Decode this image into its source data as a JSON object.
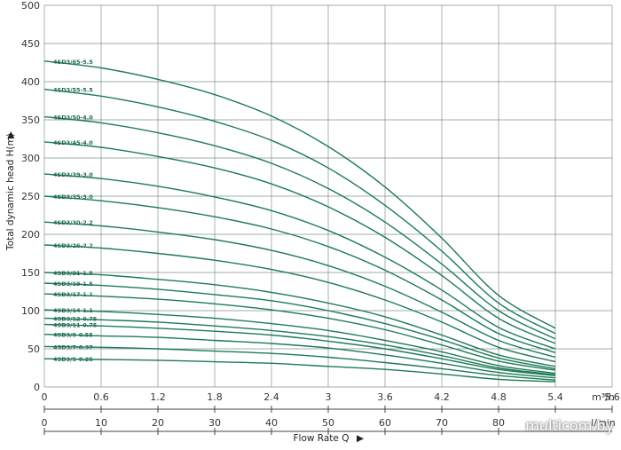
{
  "chart_data": {
    "type": "line",
    "title": "",
    "ylabel": "Total dynamic head H(m)",
    "xlabel": "Flow Rate Q",
    "ylim": [
      0,
      500
    ],
    "xlim_m3h": [
      0,
      6.0
    ],
    "y_ticks": [
      "0",
      "50",
      "100",
      "150",
      "200",
      "250",
      "300",
      "350",
      "400",
      "450",
      "500"
    ],
    "x_ticks_m3h": [
      "0",
      "0.6",
      "1.2",
      "1.8",
      "2.4",
      "3",
      "3.6",
      "4.2",
      "4.8",
      "5.4",
      "5.6"
    ],
    "x_unit_m3h": "m³/h",
    "x_ticks_lmin": [
      "0",
      "10",
      "20",
      "30",
      "40",
      "50",
      "60",
      "70",
      "80"
    ],
    "x_unit_lmin": "l/min",
    "grid": true,
    "series_color": "#1d7a56",
    "x": [
      0,
      0.6,
      1.2,
      1.8,
      2.4,
      3.0,
      3.6,
      4.2,
      4.8,
      5.4
    ],
    "series": [
      {
        "name": "4SD3/65-5.5",
        "values": [
          427,
          418,
          403,
          383,
          355,
          315,
          262,
          195,
          120,
          77
        ]
      },
      {
        "name": "4SD3/55-5.5",
        "values": [
          390,
          381,
          367,
          348,
          323,
          287,
          238,
          178,
          110,
          70
        ]
      },
      {
        "name": "4SD3/50-4.0",
        "values": [
          354,
          346,
          333,
          316,
          293,
          260,
          216,
          161,
          100,
          63
        ]
      },
      {
        "name": "4SD3/45-4.0",
        "values": [
          321,
          314,
          302,
          287,
          266,
          236,
          196,
          146,
          90,
          57
        ]
      },
      {
        "name": "4SD3/39-3.0",
        "values": [
          279,
          273,
          263,
          249,
          231,
          205,
          170,
          127,
          78,
          50
        ]
      },
      {
        "name": "4SD3/35-3.0",
        "values": [
          250,
          244,
          235,
          223,
          207,
          184,
          153,
          114,
          70,
          45
        ]
      },
      {
        "name": "4SD3/30-2.2",
        "values": [
          216,
          211,
          203,
          193,
          179,
          159,
          132,
          98,
          61,
          39
        ]
      },
      {
        "name": "4SD3/26-2.2",
        "values": [
          186,
          182,
          175,
          166,
          154,
          137,
          114,
          85,
          52,
          33
        ]
      },
      {
        "name": "4SD3/21-1.5",
        "values": [
          150,
          147,
          141,
          134,
          124,
          110,
          92,
          68,
          42,
          27
        ]
      },
      {
        "name": "4SD3/19-1.5",
        "values": [
          136,
          133,
          128,
          121,
          113,
          100,
          83,
          62,
          38,
          24
        ]
      },
      {
        "name": "4SD3/17-1.1",
        "values": [
          122,
          119,
          115,
          109,
          101,
          90,
          75,
          55,
          34,
          22
        ]
      },
      {
        "name": "4SD3/14-1.1",
        "values": [
          101,
          99,
          95,
          90,
          83,
          74,
          61,
          46,
          28,
          18
        ]
      },
      {
        "name": "4SD3/12-0.75",
        "values": [
          90,
          88,
          85,
          80,
          74,
          66,
          55,
          41,
          25,
          16
        ]
      },
      {
        "name": "4SD3/11-0.75",
        "values": [
          82,
          80,
          77,
          73,
          68,
          60,
          50,
          37,
          23,
          15
        ]
      },
      {
        "name": "4SD3/9-0.55",
        "values": [
          69,
          67,
          65,
          61,
          57,
          51,
          42,
          31,
          19,
          12
        ]
      },
      {
        "name": "4SD3/7-0.37",
        "values": [
          53,
          52,
          50,
          47,
          44,
          39,
          32,
          24,
          15,
          9
        ]
      },
      {
        "name": "4SD3/5-0.25",
        "values": [
          37,
          36,
          35,
          33,
          31,
          27,
          23,
          17,
          10,
          7
        ]
      }
    ]
  },
  "watermark": "multicom.by"
}
